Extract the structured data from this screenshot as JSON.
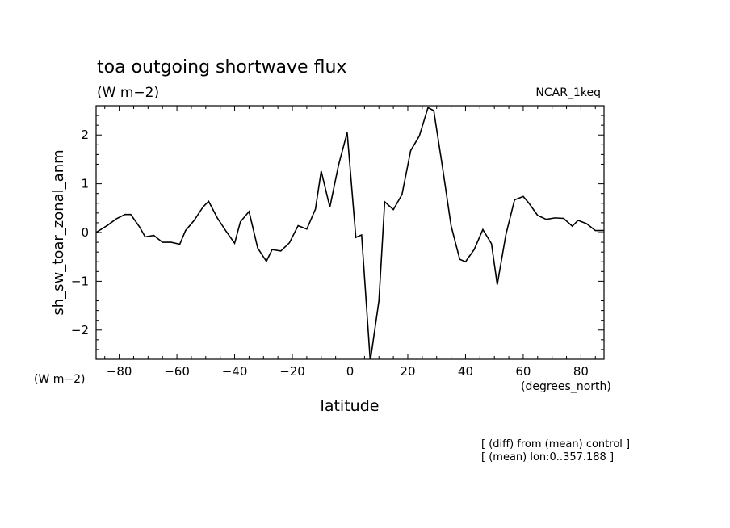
{
  "chart_data": {
    "type": "line",
    "title": "toa outgoing shortwave flux",
    "subtitle": "(W m−2)",
    "model_label": "NCAR_1keq",
    "ylabel": "sh_sw_toar_zonal_anm",
    "yunits": "(W m−2)",
    "xlabel": "latitude",
    "xunits": "(degrees_north)",
    "footnote1": "[ (diff) from (mean) control ]",
    "footnote2": "[ (mean) lon:0..357.188 ]",
    "xlim": [
      -88,
      88
    ],
    "ylim": [
      -2.6,
      2.6
    ],
    "xticks": [
      -80,
      -60,
      -40,
      -20,
      0,
      20,
      40,
      60,
      80
    ],
    "xtick_labels": [
      "−80",
      "−60",
      "−40",
      "−20",
      "0",
      "20",
      "40",
      "60",
      "80"
    ],
    "yticks": [
      -2,
      -1,
      0,
      1,
      2
    ],
    "ytick_labels": [
      "−2",
      "−1",
      "0",
      "1",
      "2"
    ],
    "grid": false,
    "series": [
      {
        "color": "#000000",
        "x": [
          -88,
          -84,
          -81,
          -78,
          -76,
          -73,
          -71,
          -68,
          -65,
          -62,
          -59,
          -57,
          -54,
          -51,
          -49,
          -46,
          -43,
          -40,
          -38,
          -35,
          -32,
          -29,
          -27,
          -24,
          -21,
          -18,
          -15,
          -12,
          -10,
          -7,
          -4,
          -1,
          2,
          4,
          7,
          10,
          12,
          15,
          18,
          21,
          24,
          27,
          29,
          32,
          35,
          38,
          40,
          43,
          46,
          49,
          51,
          54,
          57,
          60,
          62,
          65,
          68,
          71,
          74,
          77,
          79,
          82,
          85,
          88
        ],
        "y": [
          0.0,
          0.15,
          0.28,
          0.37,
          0.37,
          0.12,
          -0.09,
          -0.06,
          -0.2,
          -0.2,
          -0.24,
          0.04,
          0.25,
          0.52,
          0.64,
          0.3,
          0.03,
          -0.22,
          0.22,
          0.43,
          -0.32,
          -0.59,
          -0.35,
          -0.38,
          -0.21,
          0.14,
          0.07,
          0.48,
          1.26,
          0.52,
          1.38,
          2.05,
          -0.1,
          -0.05,
          -2.64,
          -1.4,
          0.63,
          0.47,
          0.78,
          1.68,
          1.98,
          2.56,
          2.5,
          1.35,
          0.14,
          -0.55,
          -0.6,
          -0.35,
          0.06,
          -0.23,
          -1.07,
          -0.04,
          0.67,
          0.74,
          0.6,
          0.35,
          0.27,
          0.3,
          0.29,
          0.13,
          0.25,
          0.18,
          0.04,
          0.04
        ]
      }
    ]
  }
}
